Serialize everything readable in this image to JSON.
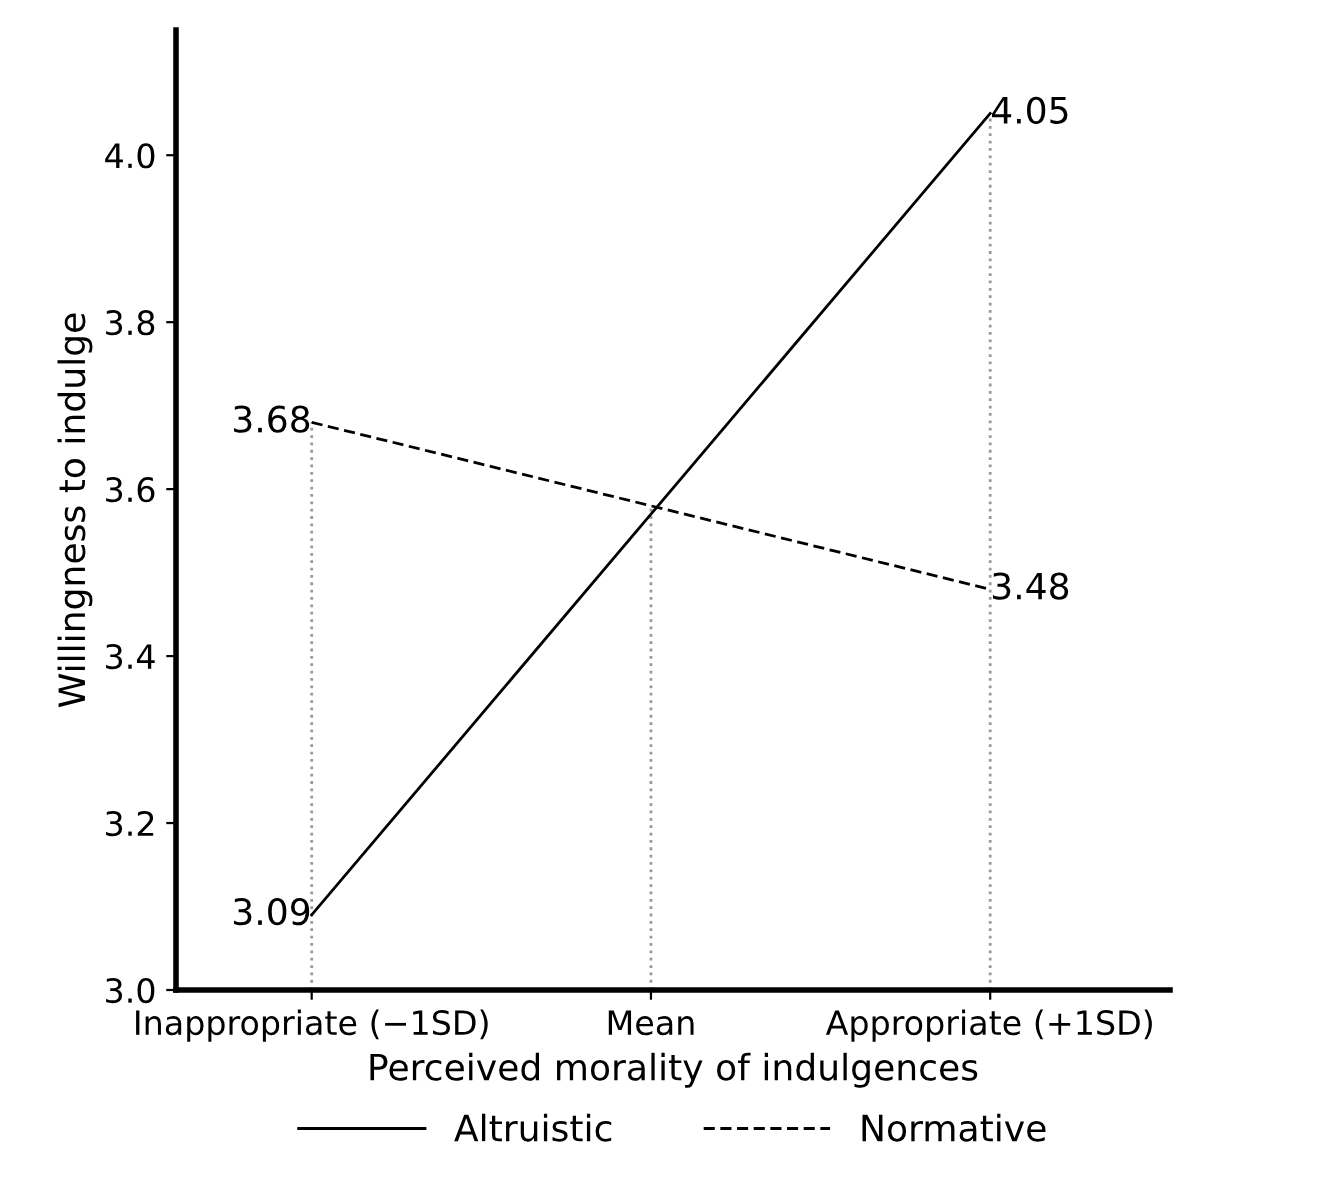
{
  "chart_data": {
    "type": "line",
    "xlabel": "Perceived morality of indulgences",
    "ylabel": "Willingness to indulge",
    "categories": [
      "Inappropriate (−1SD)",
      "Mean",
      "Appropriate (+1SD)"
    ],
    "series": [
      {
        "name": "Altruistic",
        "color": "#000000",
        "line_style": "solid",
        "values": [
          3.09,
          3.57,
          4.05
        ],
        "value_labels": [
          "3.09",
          null,
          "4.05"
        ]
      },
      {
        "name": "Normative",
        "color": "#000000",
        "line_style": "dashed",
        "values": [
          3.68,
          3.58,
          3.48
        ],
        "value_labels": [
          "3.68",
          null,
          "3.48"
        ]
      }
    ],
    "ref_lines": [
      {
        "axis": "x",
        "value": "Inappropriate (−1SD)",
        "color": "#999999",
        "line_style": "dotted"
      },
      {
        "axis": "x",
        "value": "Mean",
        "color": "#999999",
        "line_style": "dotted"
      },
      {
        "axis": "x",
        "value": "Appropriate (+1SD)",
        "color": "#999999",
        "line_style": "dotted"
      }
    ],
    "ylim": [
      3.0,
      4.15
    ],
    "yticks": [
      {
        "value": 3.0,
        "label": "3.0"
      },
      3.2,
      3.4,
      3.6,
      3.8,
      {
        "value": 4.0,
        "label": "4.0"
      }
    ],
    "grid": false,
    "legend": "bottom",
    "marker": "none"
  }
}
